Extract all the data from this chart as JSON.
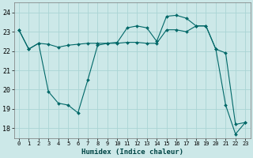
{
  "xlabel": "Humidex (Indice chaleur)",
  "bg_color": "#cce8e8",
  "grid_color": "#aad4d4",
  "line_color": "#006868",
  "xlim": [
    -0.5,
    23.5
  ],
  "ylim": [
    17.5,
    24.5
  ],
  "yticks": [
    18,
    19,
    20,
    21,
    22,
    23,
    24
  ],
  "xticks": [
    0,
    1,
    2,
    3,
    4,
    5,
    6,
    7,
    8,
    9,
    10,
    11,
    12,
    13,
    14,
    15,
    16,
    17,
    18,
    19,
    20,
    21,
    22,
    23
  ],
  "line1_x": [
    0,
    1,
    2,
    3,
    4,
    5,
    6,
    7,
    8,
    9,
    10,
    11,
    12,
    13,
    14,
    15,
    16,
    17,
    18,
    19,
    20,
    21,
    22,
    23
  ],
  "line1_y": [
    23.1,
    22.1,
    22.4,
    22.35,
    22.2,
    22.3,
    22.35,
    22.4,
    22.4,
    22.4,
    22.4,
    22.45,
    22.45,
    22.4,
    22.4,
    23.1,
    23.1,
    23.0,
    23.3,
    23.3,
    22.1,
    21.9,
    18.2,
    18.3
  ],
  "line2_x": [
    0,
    1,
    2,
    3,
    4,
    5,
    6,
    7,
    8,
    9,
    10,
    11,
    12,
    13,
    14,
    15,
    16,
    17,
    18,
    19,
    20,
    21,
    22,
    23
  ],
  "line2_y": [
    23.1,
    22.1,
    22.4,
    19.9,
    19.3,
    19.2,
    18.8,
    20.5,
    22.3,
    22.4,
    22.45,
    23.2,
    23.3,
    23.2,
    22.5,
    23.8,
    23.85,
    23.7,
    23.3,
    23.3,
    22.1,
    19.2,
    17.7,
    18.3
  ]
}
